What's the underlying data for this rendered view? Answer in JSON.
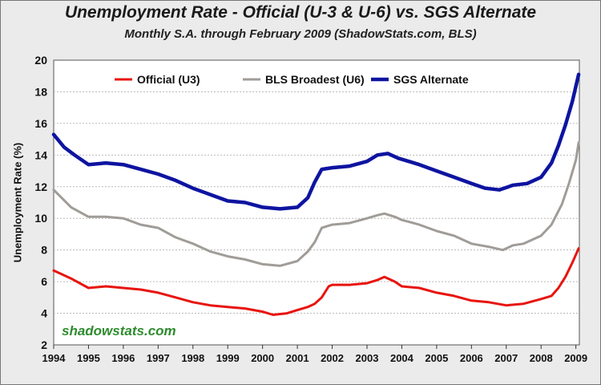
{
  "chart_data": {
    "type": "line",
    "title": "Unemployment Rate - Official (U-3 & U-6) vs. SGS Alternate",
    "subtitle": "Monthly S.A. through February 2009 (ShadowStats.com, BLS)",
    "xlabel": "",
    "ylabel": "Unemployment Rate (%)",
    "xlim": [
      1994,
      2009.1
    ],
    "ylim": [
      2,
      20
    ],
    "x_ticks": [
      "1994",
      "1995",
      "1996",
      "1997",
      "1998",
      "1999",
      "2000",
      "2001",
      "2002",
      "2003",
      "2004",
      "2005",
      "2006",
      "2007",
      "2008",
      "2009"
    ],
    "y_ticks": [
      "2",
      "4",
      "6",
      "8",
      "10",
      "12",
      "14",
      "16",
      "18",
      "20"
    ],
    "grid": "horizontal",
    "legend_position": "top",
    "watermark": "shadowstats.com",
    "series": [
      {
        "name": "Official (U3)",
        "color": "#e8140e",
        "points": [
          [
            1994.0,
            6.7
          ],
          [
            1994.5,
            6.2
          ],
          [
            1995.0,
            5.6
          ],
          [
            1995.5,
            5.7
          ],
          [
            1996.0,
            5.6
          ],
          [
            1996.5,
            5.5
          ],
          [
            1997.0,
            5.3
          ],
          [
            1997.5,
            5.0
          ],
          [
            1998.0,
            4.7
          ],
          [
            1998.5,
            4.5
          ],
          [
            1999.0,
            4.4
          ],
          [
            1999.5,
            4.3
          ],
          [
            2000.0,
            4.1
          ],
          [
            2000.3,
            3.9
          ],
          [
            2000.7,
            4.0
          ],
          [
            2001.0,
            4.2
          ],
          [
            2001.3,
            4.4
          ],
          [
            2001.5,
            4.6
          ],
          [
            2001.7,
            5.0
          ],
          [
            2001.9,
            5.7
          ],
          [
            2002.0,
            5.8
          ],
          [
            2002.5,
            5.8
          ],
          [
            2003.0,
            5.9
          ],
          [
            2003.3,
            6.1
          ],
          [
            2003.5,
            6.3
          ],
          [
            2003.8,
            6.0
          ],
          [
            2004.0,
            5.7
          ],
          [
            2004.5,
            5.6
          ],
          [
            2005.0,
            5.3
          ],
          [
            2005.5,
            5.1
          ],
          [
            2006.0,
            4.8
          ],
          [
            2006.5,
            4.7
          ],
          [
            2007.0,
            4.5
          ],
          [
            2007.5,
            4.6
          ],
          [
            2008.0,
            4.9
          ],
          [
            2008.3,
            5.1
          ],
          [
            2008.5,
            5.6
          ],
          [
            2008.7,
            6.3
          ],
          [
            2008.9,
            7.2
          ],
          [
            2009.08,
            8.1
          ]
        ]
      },
      {
        "name": "BLS Broadest (U6)",
        "color": "#a09c98",
        "points": [
          [
            1994.0,
            11.8
          ],
          [
            1994.5,
            10.7
          ],
          [
            1995.0,
            10.1
          ],
          [
            1995.5,
            10.1
          ],
          [
            1996.0,
            10.0
          ],
          [
            1996.5,
            9.6
          ],
          [
            1997.0,
            9.4
          ],
          [
            1997.5,
            8.8
          ],
          [
            1998.0,
            8.4
          ],
          [
            1998.5,
            7.9
          ],
          [
            1999.0,
            7.6
          ],
          [
            1999.5,
            7.4
          ],
          [
            2000.0,
            7.1
          ],
          [
            2000.5,
            7.0
          ],
          [
            2001.0,
            7.3
          ],
          [
            2001.3,
            7.9
          ],
          [
            2001.5,
            8.5
          ],
          [
            2001.7,
            9.4
          ],
          [
            2002.0,
            9.6
          ],
          [
            2002.5,
            9.7
          ],
          [
            2003.0,
            10.0
          ],
          [
            2003.3,
            10.2
          ],
          [
            2003.5,
            10.3
          ],
          [
            2003.8,
            10.1
          ],
          [
            2004.0,
            9.9
          ],
          [
            2004.5,
            9.6
          ],
          [
            2005.0,
            9.2
          ],
          [
            2005.5,
            8.9
          ],
          [
            2006.0,
            8.4
          ],
          [
            2006.5,
            8.2
          ],
          [
            2006.9,
            8.0
          ],
          [
            2007.2,
            8.3
          ],
          [
            2007.5,
            8.4
          ],
          [
            2008.0,
            8.9
          ],
          [
            2008.3,
            9.6
          ],
          [
            2008.6,
            10.9
          ],
          [
            2008.8,
            12.2
          ],
          [
            2009.0,
            13.7
          ],
          [
            2009.08,
            14.8
          ]
        ]
      },
      {
        "name": "SGS Alternate",
        "color": "#0e14a0",
        "points": [
          [
            1994.0,
            15.3
          ],
          [
            1994.3,
            14.5
          ],
          [
            1994.6,
            14.0
          ],
          [
            1995.0,
            13.4
          ],
          [
            1995.5,
            13.5
          ],
          [
            1996.0,
            13.4
          ],
          [
            1996.5,
            13.1
          ],
          [
            1997.0,
            12.8
          ],
          [
            1997.5,
            12.4
          ],
          [
            1998.0,
            11.9
          ],
          [
            1998.5,
            11.5
          ],
          [
            1999.0,
            11.1
          ],
          [
            1999.5,
            11.0
          ],
          [
            2000.0,
            10.7
          ],
          [
            2000.5,
            10.6
          ],
          [
            2001.0,
            10.7
          ],
          [
            2001.3,
            11.3
          ],
          [
            2001.5,
            12.3
          ],
          [
            2001.7,
            13.1
          ],
          [
            2002.0,
            13.2
          ],
          [
            2002.5,
            13.3
          ],
          [
            2003.0,
            13.6
          ],
          [
            2003.3,
            14.0
          ],
          [
            2003.6,
            14.1
          ],
          [
            2003.9,
            13.8
          ],
          [
            2004.2,
            13.6
          ],
          [
            2004.5,
            13.4
          ],
          [
            2005.0,
            13.0
          ],
          [
            2005.5,
            12.6
          ],
          [
            2006.0,
            12.2
          ],
          [
            2006.4,
            11.9
          ],
          [
            2006.8,
            11.8
          ],
          [
            2007.2,
            12.1
          ],
          [
            2007.6,
            12.2
          ],
          [
            2008.0,
            12.6
          ],
          [
            2008.3,
            13.5
          ],
          [
            2008.5,
            14.6
          ],
          [
            2008.7,
            15.9
          ],
          [
            2008.9,
            17.4
          ],
          [
            2009.08,
            19.1
          ]
        ]
      }
    ]
  }
}
